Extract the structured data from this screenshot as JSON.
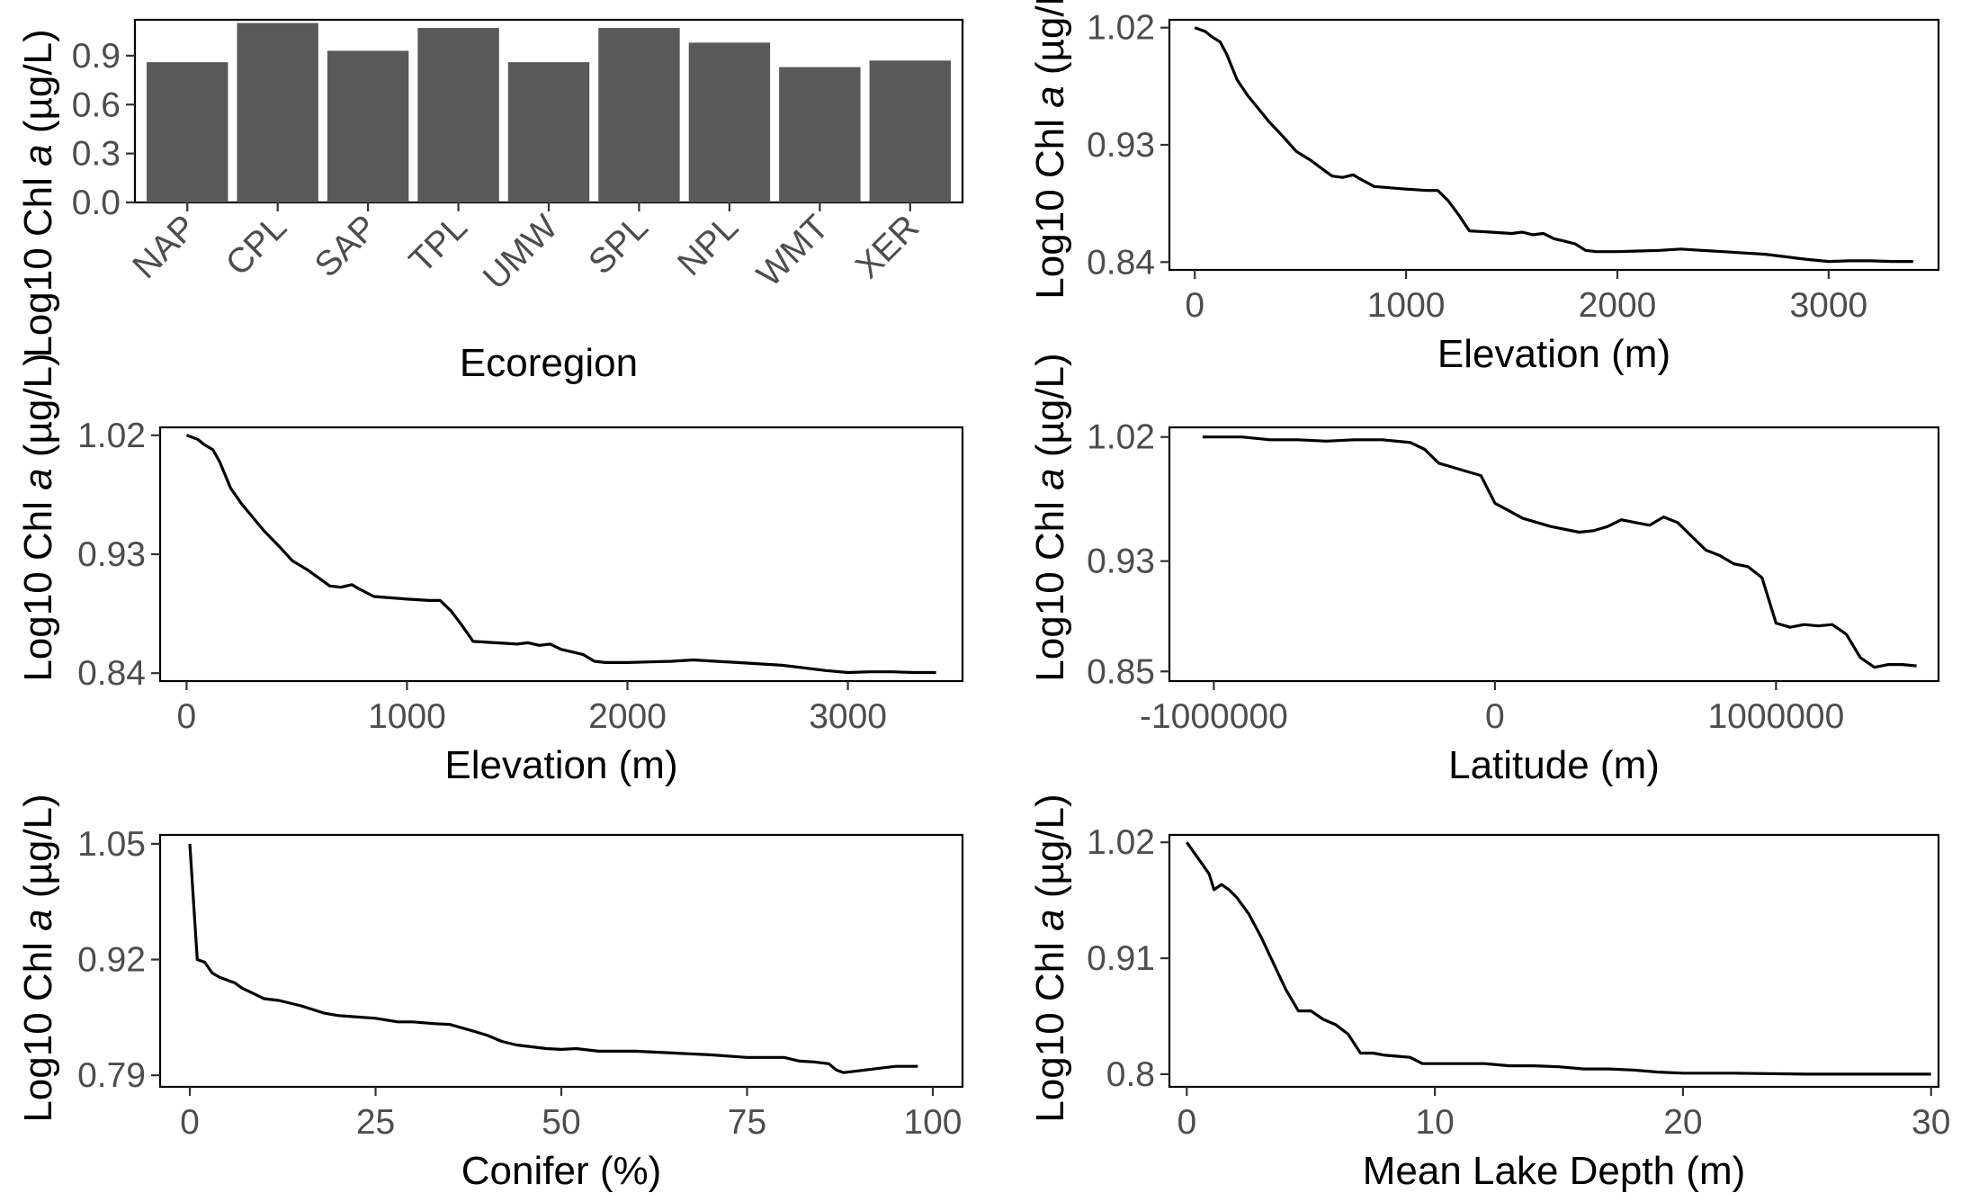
{
  "chart_data": [
    {
      "type": "bar",
      "xlabel": "Ecoregion",
      "ylabel_prefix": "Log10 Chl ",
      "ylabel_italic": "a",
      "ylabel_suffix": " (µg/L)",
      "categories": [
        "NAP",
        "CPL",
        "SAP",
        "TPL",
        "UMW",
        "SPL",
        "NPL",
        "WMT",
        "XER"
      ],
      "values": [
        0.86,
        1.1,
        0.93,
        1.07,
        0.86,
        1.07,
        0.98,
        0.83,
        0.87
      ],
      "ylim": [
        0,
        1.12
      ],
      "yticks": [
        0.0,
        0.3,
        0.6,
        0.9
      ],
      "ytick_labels": [
        "0.0",
        "0.3",
        "0.6",
        "0.9"
      ],
      "grid": false
    },
    {
      "type": "line",
      "xlabel": "Elevation (m)",
      "ylabel_prefix": "Log10 Chl ",
      "ylabel_italic": "a",
      "ylabel_suffix": " (µg/L)",
      "xlim": [
        -120,
        3520
      ],
      "ylim": [
        0.834,
        1.026
      ],
      "xticks": [
        0,
        1000,
        2000,
        3000
      ],
      "xtick_labels": [
        "0",
        "1000",
        "2000",
        "3000"
      ],
      "yticks": [
        0.84,
        0.93,
        1.02
      ],
      "ytick_labels": [
        "0.84",
        "0.93",
        "1.02"
      ],
      "x": [
        0,
        50,
        80,
        120,
        150,
        200,
        250,
        300,
        350,
        420,
        480,
        550,
        600,
        650,
        700,
        750,
        780,
        850,
        1000,
        1100,
        1150,
        1200,
        1250,
        1300,
        1400,
        1500,
        1550,
        1600,
        1650,
        1700,
        1750,
        1800,
        1850,
        1900,
        2000,
        2100,
        2200,
        2300,
        2400,
        2500,
        2600,
        2700,
        2800,
        2850,
        2900,
        3000,
        3100,
        3200,
        3300,
        3400
      ],
      "y": [
        1.02,
        1.017,
        1.013,
        1.009,
        1.0,
        0.98,
        0.968,
        0.958,
        0.948,
        0.936,
        0.925,
        0.918,
        0.912,
        0.906,
        0.905,
        0.907,
        0.904,
        0.898,
        0.896,
        0.895,
        0.895,
        0.887,
        0.876,
        0.864,
        0.863,
        0.862,
        0.863,
        0.861,
        0.862,
        0.858,
        0.856,
        0.854,
        0.849,
        0.848,
        0.848,
        0.8485,
        0.849,
        0.85,
        0.849,
        0.848,
        0.847,
        0.846,
        0.844,
        0.843,
        0.842,
        0.8405,
        0.841,
        0.841,
        0.8405,
        0.8405
      ],
      "grid": false
    },
    {
      "type": "line",
      "xlabel": "Elevation (m)",
      "ylabel_prefix": "Log10 Chl ",
      "ylabel_italic": "a",
      "ylabel_suffix": " (µg/L)",
      "xlim": [
        -120,
        3520
      ],
      "ylim": [
        0.834,
        1.026
      ],
      "xticks": [
        0,
        1000,
        2000,
        3000
      ],
      "xtick_labels": [
        "0",
        "1000",
        "2000",
        "3000"
      ],
      "yticks": [
        0.84,
        0.93,
        1.02
      ],
      "ytick_labels": [
        "0.84",
        "0.93",
        "1.02"
      ],
      "x": [
        0,
        50,
        80,
        120,
        150,
        200,
        250,
        300,
        350,
        420,
        480,
        550,
        600,
        650,
        700,
        750,
        780,
        850,
        1000,
        1100,
        1150,
        1200,
        1250,
        1300,
        1400,
        1500,
        1550,
        1600,
        1650,
        1700,
        1750,
        1800,
        1850,
        1900,
        2000,
        2100,
        2200,
        2300,
        2400,
        2500,
        2600,
        2700,
        2800,
        2850,
        2900,
        3000,
        3100,
        3200,
        3300,
        3400
      ],
      "y": [
        1.02,
        1.017,
        1.013,
        1.009,
        1.0,
        0.98,
        0.968,
        0.958,
        0.948,
        0.936,
        0.925,
        0.918,
        0.912,
        0.906,
        0.905,
        0.907,
        0.904,
        0.898,
        0.896,
        0.895,
        0.895,
        0.887,
        0.876,
        0.864,
        0.863,
        0.862,
        0.863,
        0.861,
        0.862,
        0.858,
        0.856,
        0.854,
        0.849,
        0.848,
        0.848,
        0.8485,
        0.849,
        0.85,
        0.849,
        0.848,
        0.847,
        0.846,
        0.844,
        0.843,
        0.842,
        0.8405,
        0.841,
        0.841,
        0.8405,
        0.8405
      ],
      "grid": false
    },
    {
      "type": "line",
      "xlabel": "Latitude (m)",
      "ylabel_prefix": "Log10 Chl ",
      "ylabel_italic": "a",
      "ylabel_suffix": " (µg/L)",
      "xlim": [
        -1158000,
        1578000
      ],
      "ylim": [
        0.843,
        1.027
      ],
      "xticks": [
        -1000000,
        0,
        1000000
      ],
      "xtick_labels": [
        "-1000000",
        "0",
        "1000000"
      ],
      "yticks": [
        0.85,
        0.93,
        1.02
      ],
      "ytick_labels": [
        "0.85",
        "0.93",
        "1.02"
      ],
      "x": [
        -1040000,
        -900000,
        -800000,
        -700000,
        -600000,
        -500000,
        -400000,
        -300000,
        -250000,
        -200000,
        -150000,
        -100000,
        -50000,
        0,
        100000,
        200000,
        300000,
        350000,
        400000,
        450000,
        500000,
        550000,
        600000,
        650000,
        700000,
        750000,
        800000,
        850000,
        900000,
        950000,
        1000000,
        1050000,
        1100000,
        1150000,
        1200000,
        1250000,
        1300000,
        1350000,
        1400000,
        1450000,
        1500000
      ],
      "y": [
        1.02,
        1.02,
        1.018,
        1.018,
        1.017,
        1.018,
        1.018,
        1.016,
        1.011,
        1.001,
        0.998,
        0.995,
        0.992,
        0.972,
        0.961,
        0.955,
        0.951,
        0.952,
        0.955,
        0.96,
        0.958,
        0.956,
        0.962,
        0.958,
        0.948,
        0.938,
        0.934,
        0.928,
        0.926,
        0.918,
        0.885,
        0.882,
        0.884,
        0.883,
        0.884,
        0.877,
        0.86,
        0.853,
        0.855,
        0.855,
        0.854
      ],
      "grid": false
    },
    {
      "type": "line",
      "xlabel": "Conifer (%)",
      "ylabel_prefix": "Log10 Chl ",
      "ylabel_italic": "a",
      "ylabel_suffix": " (µg/L)",
      "xlim": [
        -4,
        104
      ],
      "ylim": [
        0.777,
        1.06
      ],
      "xticks": [
        0,
        25,
        50,
        75,
        100
      ],
      "xtick_labels": [
        "0",
        "25",
        "50",
        "75",
        "100"
      ],
      "yticks": [
        0.79,
        0.92,
        1.05
      ],
      "ytick_labels": [
        "0.79",
        "0.92",
        "1.05"
      ],
      "x": [
        0,
        1,
        2,
        3,
        4,
        5,
        6,
        7,
        8,
        9,
        10,
        12,
        15,
        18,
        20,
        25,
        28,
        30,
        33,
        35,
        38,
        40,
        42,
        44,
        46,
        48,
        50,
        52,
        55,
        60,
        65,
        70,
        75,
        80,
        82,
        84,
        86,
        87,
        88,
        90,
        92,
        95,
        98
      ],
      "y": [
        1.05,
        0.92,
        0.917,
        0.905,
        0.9,
        0.897,
        0.894,
        0.888,
        0.884,
        0.88,
        0.876,
        0.874,
        0.868,
        0.86,
        0.857,
        0.854,
        0.85,
        0.85,
        0.848,
        0.847,
        0.84,
        0.835,
        0.828,
        0.824,
        0.822,
        0.82,
        0.819,
        0.82,
        0.817,
        0.817,
        0.815,
        0.813,
        0.81,
        0.81,
        0.806,
        0.805,
        0.803,
        0.796,
        0.793,
        0.795,
        0.797,
        0.8,
        0.8
      ],
      "grid": false
    },
    {
      "type": "line",
      "xlabel": "Mean Lake Depth (m)",
      "ylabel_prefix": "Log10 Chl ",
      "ylabel_italic": "a",
      "ylabel_suffix": " (µg/L)",
      "xlim": [
        -0.7,
        30.3
      ],
      "ylim": [
        0.788,
        1.027
      ],
      "xticks": [
        0,
        10,
        20,
        30
      ],
      "xtick_labels": [
        "0",
        "10",
        "20",
        "30"
      ],
      "yticks": [
        0.8,
        0.91,
        1.02
      ],
      "ytick_labels": [
        "0.8",
        "0.91",
        "1.02"
      ],
      "x": [
        0,
        0.3,
        0.6,
        0.9,
        1.1,
        1.4,
        1.7,
        2.0,
        2.5,
        3.0,
        3.5,
        4.0,
        4.5,
        5.0,
        5.5,
        6.0,
        6.5,
        7.0,
        7.5,
        8.0,
        8.5,
        9.0,
        9.5,
        10,
        11,
        12,
        13,
        14,
        15,
        16,
        17,
        18,
        19,
        20,
        22,
        25,
        28,
        30
      ],
      "y": [
        1.02,
        1.01,
        1.0,
        0.99,
        0.975,
        0.98,
        0.975,
        0.968,
        0.952,
        0.93,
        0.905,
        0.88,
        0.86,
        0.86,
        0.852,
        0.847,
        0.838,
        0.82,
        0.82,
        0.818,
        0.817,
        0.816,
        0.81,
        0.81,
        0.81,
        0.81,
        0.808,
        0.808,
        0.807,
        0.805,
        0.805,
        0.804,
        0.802,
        0.801,
        0.801,
        0.8,
        0.8,
        0.8
      ],
      "grid": false
    }
  ]
}
